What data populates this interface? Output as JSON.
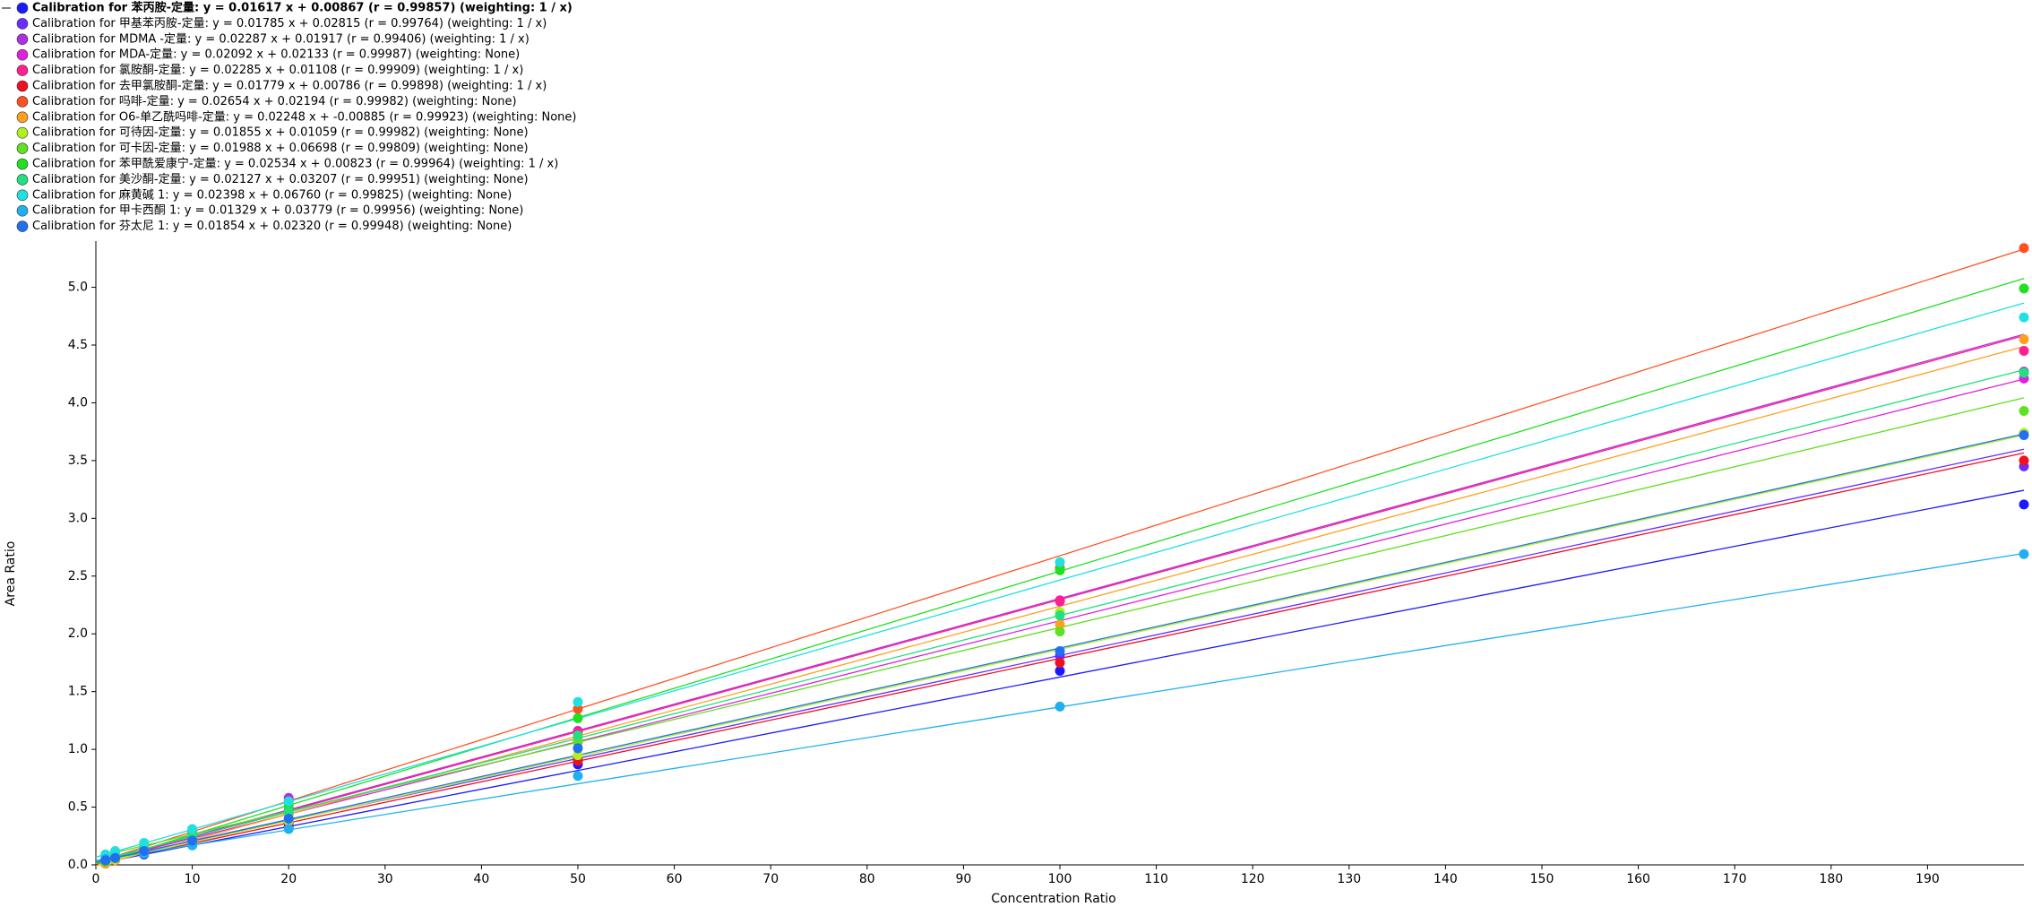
{
  "chart_data": {
    "type": "calibration",
    "xlabel": "Concentration Ratio",
    "ylabel": "Area Ratio",
    "x": [
      1,
      2,
      5,
      10,
      20,
      50,
      100,
      200
    ],
    "xlim": [
      0,
      200
    ],
    "ylim": [
      0,
      5.4
    ],
    "xticks": [
      0,
      10,
      20,
      30,
      40,
      50,
      60,
      70,
      80,
      90,
      100,
      110,
      120,
      130,
      140,
      150,
      160,
      170,
      180,
      190
    ],
    "yticks": [
      {
        "value": 0,
        "label": "0.0"
      },
      {
        "value": 0.5,
        "label": "0.5"
      },
      {
        "value": 1,
        "label": "1.0"
      },
      {
        "value": 1.5,
        "label": "1.5"
      },
      {
        "value": 2,
        "label": "2.0"
      },
      {
        "value": 2.5,
        "label": "2.5"
      },
      {
        "value": 3,
        "label": "3.0"
      },
      {
        "value": 3.5,
        "label": "3.5"
      },
      {
        "value": 4,
        "label": "4.0"
      },
      {
        "value": 4.5,
        "label": "4.5"
      },
      {
        "value": 5,
        "label": "5.0"
      }
    ],
    "series": [
      {
        "name": "Calibration for 苯丙胺-定量: y = 0.01617 x + 0.00867 (r = 0.99857) (weighting: 1 / x)",
        "color": "#1a1aff",
        "slope": 0.01617,
        "intercept": 0.00867,
        "values": [
          0.02,
          0.04,
          0.09,
          0.17,
          0.33,
          0.87,
          1.68,
          3.12
        ]
      },
      {
        "name": "Calibration for 甲基苯丙胺-定量: y = 0.01785 x + 0.02815 (r = 0.99764) (weighting: 1 / x)",
        "color": "#6a2cff",
        "slope": 0.01785,
        "intercept": 0.02815,
        "values": [
          0.05,
          0.06,
          0.12,
          0.21,
          0.38,
          0.92,
          1.81,
          3.45
        ]
      },
      {
        "name": "Calibration for MDMA -定量: y = 0.02287 x + 0.01917 (r = 0.99406) (weighting: 1 / x)",
        "color": "#b030e0",
        "slope": 0.02287,
        "intercept": 0.01917,
        "values": [
          0.04,
          0.06,
          0.13,
          0.25,
          0.58,
          1.16,
          2.29,
          4.27
        ]
      },
      {
        "name": "Calibration for MDA-定量: y = 0.02092 x + 0.02133 (r = 0.99987) (weighting: None)",
        "color": "#e020e0",
        "slope": 0.02092,
        "intercept": 0.02133,
        "values": [
          0.04,
          0.06,
          0.13,
          0.23,
          0.44,
          1.07,
          2.28,
          4.21
        ]
      },
      {
        "name": "Calibration for 氯胺酮-定量: y = 0.02285 x + 0.01108 (r = 0.99909) (weighting: 1 / x)",
        "color": "#ff2090",
        "slope": 0.02285,
        "intercept": 0.01108,
        "values": [
          0.03,
          0.06,
          0.13,
          0.24,
          0.47,
          1.15,
          2.29,
          4.45
        ]
      },
      {
        "name": "Calibration for 去甲氯胺酮-定量: y = 0.01779 x + 0.00786 (r = 0.99898) (weighting: 1 / x)",
        "color": "#f01020",
        "slope": 0.01779,
        "intercept": 0.00786,
        "values": [
          0.03,
          0.04,
          0.1,
          0.19,
          0.36,
          0.9,
          1.75,
          3.5
        ]
      },
      {
        "name": "Calibration for 吗啡-定量: y = 0.02654 x + 0.02194 (r = 0.99982) (weighting: None)",
        "color": "#ff5020",
        "slope": 0.02654,
        "intercept": 0.02194,
        "values": [
          0.05,
          0.07,
          0.15,
          0.29,
          0.55,
          1.35,
          2.57,
          5.34
        ]
      },
      {
        "name": "Calibration for O6-单乙酰吗啡-定量: y = 0.02248 x + -0.00885 (r = 0.99923) (weighting: None)",
        "color": "#ffa020",
        "slope": 0.02248,
        "intercept": -0.00885,
        "values": [
          0.01,
          0.04,
          0.1,
          0.21,
          0.44,
          1.1,
          2.08,
          4.55
        ]
      },
      {
        "name": "Calibration for 可待因-定量: y = 0.01855 x + 0.01059 (r = 0.99982) (weighting: None)",
        "color": "#b0f020",
        "slope": 0.01855,
        "intercept": 0.01059,
        "values": [
          0.03,
          0.05,
          0.1,
          0.2,
          0.38,
          0.95,
          2.19,
          3.74
        ]
      },
      {
        "name": "Calibration for 可卡因-定量: y = 0.01988 x + 0.06698 (r = 0.99809) (weighting: None)",
        "color": "#60e020",
        "slope": 0.01988,
        "intercept": 0.06698,
        "values": [
          0.09,
          0.11,
          0.17,
          0.27,
          0.46,
          1.06,
          2.02,
          3.93
        ]
      },
      {
        "name": "Calibration for 苯甲酰爱康宁-定量: y = 0.02534 x + 0.00823 (r = 0.99964) (weighting: 1 / x)",
        "color": "#20e020",
        "slope": 0.02534,
        "intercept": 0.00823,
        "values": [
          0.03,
          0.06,
          0.13,
          0.26,
          0.51,
          1.27,
          2.55,
          4.99
        ]
      },
      {
        "name": "Calibration for 美沙酮-定量: y = 0.02127 x + 0.03207 (r = 0.99951) (weighting: None)",
        "color": "#20e080",
        "slope": 0.02127,
        "intercept": 0.03207,
        "values": [
          0.05,
          0.07,
          0.14,
          0.25,
          0.46,
          1.12,
          2.16,
          4.26
        ]
      },
      {
        "name": "Calibration for 麻黄碱 1: y = 0.02398 x + 0.06760 (r = 0.99825) (weighting: None)",
        "color": "#20e0e0",
        "slope": 0.02398,
        "intercept": 0.0676,
        "values": [
          0.09,
          0.12,
          0.19,
          0.31,
          0.55,
          1.41,
          2.62,
          4.74
        ]
      },
      {
        "name": "Calibration for 甲卡西酮 1: y = 0.01329 x + 0.03779 (r = 0.99956) (weighting: None)",
        "color": "#20b0f0",
        "slope": 0.01329,
        "intercept": 0.03779,
        "values": [
          0.05,
          0.06,
          0.1,
          0.17,
          0.31,
          0.77,
          1.37,
          2.69
        ]
      },
      {
        "name": "Calibration for 芬太尼 1: y = 0.01854 x + 0.02320 (r = 0.99948) (weighting: None)",
        "color": "#2070f0",
        "slope": 0.01854,
        "intercept": 0.0232,
        "values": [
          0.04,
          0.06,
          0.12,
          0.21,
          0.4,
          1.01,
          1.85,
          3.72
        ]
      }
    ]
  }
}
